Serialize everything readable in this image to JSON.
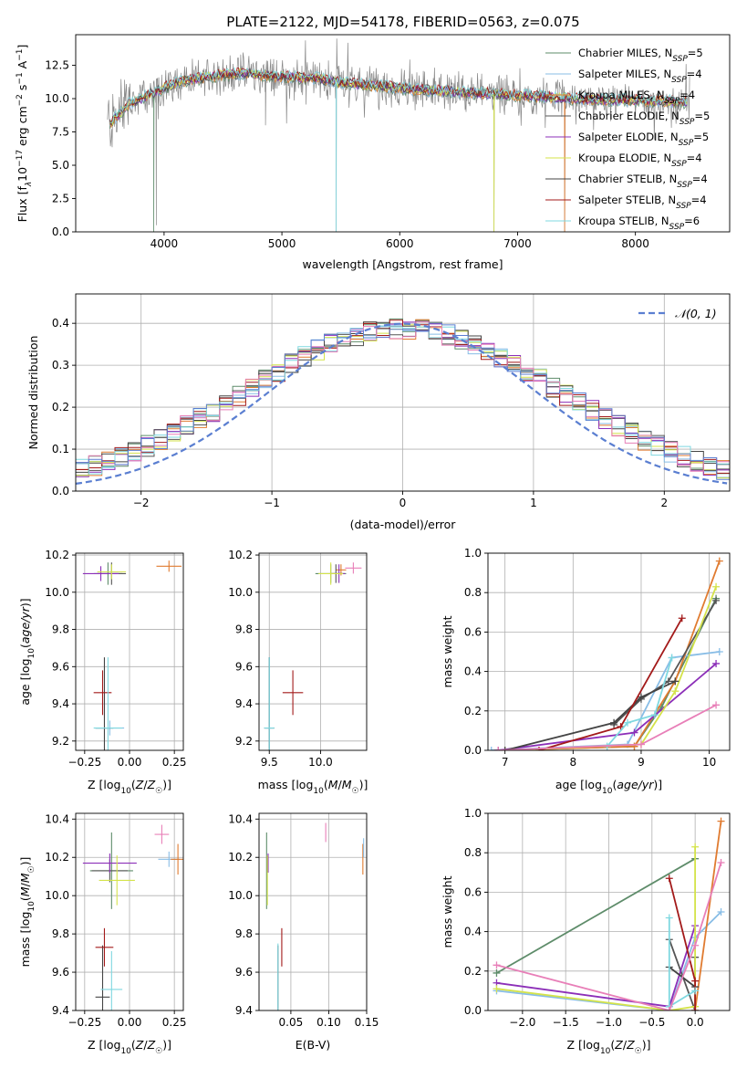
{
  "figure": {
    "title": "PLATE=2122, MJD=54178, FIBERID=0563, z=0.075"
  },
  "models": [
    {
      "label": "Chabrier MILES, N",
      "sub": "SSP",
      "suffix": "=5",
      "color": "#5e8c6a"
    },
    {
      "label": "Salpeter MILES, N",
      "sub": "SSP",
      "suffix": "=4",
      "color": "#88bde6"
    },
    {
      "label": "Kroupa MILES, N",
      "sub": "SSP",
      "suffix": "=4",
      "color": "#e07b30"
    },
    {
      "label": "Chabrier ELODIE, N",
      "sub": "SSP",
      "suffix": "=5",
      "color": "#555555"
    },
    {
      "label": "Salpeter ELODIE, N",
      "sub": "SSP",
      "suffix": "=5",
      "color": "#8c2fb8"
    },
    {
      "label": "Kroupa ELODIE, N",
      "sub": "SSP",
      "suffix": "=4",
      "color": "#d4e34a"
    },
    {
      "label": "Chabrier STELIB, N",
      "sub": "SSP",
      "suffix": "=4",
      "color": "#444444"
    },
    {
      "label": "Salpeter STELIB, N",
      "sub": "SSP",
      "suffix": "=4",
      "color": "#a31a1a"
    },
    {
      "label": "Kroupa STELIB, N",
      "sub": "SSP",
      "suffix": "=6",
      "color": "#7fd8e0"
    }
  ],
  "chart_data": [
    {
      "id": "spectrum",
      "type": "line",
      "xlabel": "wavelength [Angstrom, rest frame]",
      "ylabel": "Flux [f",
      "ylabel_parts": [
        "Flux [f",
        "λ",
        "10",
        "−17",
        " erg cm",
        "−2",
        " s",
        "−1",
        " A",
        "−1",
        "]"
      ],
      "xlim": [
        3250,
        8800
      ],
      "ylim": [
        0,
        14.8
      ],
      "xticks": [
        4000,
        5000,
        6000,
        7000,
        8000
      ],
      "yticks": [
        0.0,
        2.5,
        5.0,
        7.5,
        10.0,
        12.5
      ],
      "ytick_labels": [
        "0.0",
        "2.5",
        "5.0",
        "7.5",
        "10.0",
        "12.5"
      ],
      "data_color": "#888888",
      "continuum_x": [
        3550,
        3700,
        3850,
        4000,
        4100,
        4200,
        4300,
        4500,
        4700,
        4900,
        5100,
        5300,
        5500,
        5700,
        5900,
        6100,
        6300,
        6500,
        6700,
        6900,
        7100,
        7300,
        7500,
        7700,
        7900,
        8100,
        8300,
        8450
      ],
      "continuum_y": [
        8.2,
        9.6,
        10.2,
        10.8,
        11.2,
        11.4,
        11.5,
        11.8,
        11.9,
        11.7,
        11.6,
        11.5,
        11.2,
        11.0,
        10.9,
        10.7,
        10.6,
        10.5,
        10.4,
        10.3,
        10.2,
        10.1,
        10.0,
        9.9,
        9.9,
        9.8,
        9.8,
        9.7
      ],
      "absorption_dips": [
        [
          3934,
          0.5
        ],
        [
          4861,
          8.0
        ],
        [
          5460,
          0.0
        ],
        [
          6800,
          0.0
        ],
        [
          7400,
          0.0
        ],
        [
          6563,
          9.0
        ]
      ]
    },
    {
      "id": "residuals",
      "type": "histogram",
      "xlabel": "(data-model)/error",
      "ylabel": "Normed distribution",
      "xlim": [
        -2.5,
        2.5
      ],
      "ylim": [
        0,
        0.47
      ],
      "xticks": [
        -2,
        -1,
        0,
        1,
        2
      ],
      "xtick_labels": [
        "−2",
        "−1",
        "0",
        "1",
        "2"
      ],
      "yticks": [
        0.0,
        0.1,
        0.2,
        0.3,
        0.4
      ],
      "ytick_labels": [
        "0.0",
        "0.1",
        "0.2",
        "0.3",
        "0.4"
      ],
      "legend": "𝒩(0, 1)",
      "gauss_color": "#5b7fd1",
      "bin_width": 0.1
    },
    {
      "id": "age-vs-z",
      "type": "scatter",
      "xlabel": "Z [log10(Z/Z☉)]",
      "ylabel": "age [log10(age/yr)]",
      "xlim": [
        -0.3,
        0.3
      ],
      "ylim": [
        9.15,
        10.21
      ],
      "xticks": [
        -0.25,
        0.0,
        0.25
      ],
      "xtick_labels": [
        "−0.25",
        "0.00",
        "0.25"
      ],
      "yticks": [
        9.2,
        9.4,
        9.6,
        9.8,
        10.0,
        10.2
      ],
      "ytick_labels": [
        "9.2",
        "9.4",
        "9.6",
        "9.8",
        "10.0",
        "10.2"
      ],
      "points": [
        {
          "m": 0,
          "x": -0.12,
          "y": 10.1,
          "ex": 0.08,
          "ey": 0.06
        },
        {
          "m": 1,
          "x": -0.11,
          "y": 9.27,
          "ex": 0.08,
          "ey": 0.04
        },
        {
          "m": 2,
          "x": 0.22,
          "y": 10.14,
          "ex": 0.07,
          "ey": 0.03
        },
        {
          "m": 3,
          "x": -0.1,
          "y": 10.1,
          "ex": 0.08,
          "ey": 0.06
        },
        {
          "m": 4,
          "x": -0.16,
          "y": 10.1,
          "ex": 0.1,
          "ey": 0.04
        },
        {
          "m": 5,
          "x": -0.1,
          "y": 10.11,
          "ex": 0.08,
          "ey": 0.04
        },
        {
          "m": 6,
          "x": -0.14,
          "y": 9.27,
          "ex": 0.05,
          "ey": 0.38
        },
        {
          "m": 7,
          "x": -0.15,
          "y": 9.46,
          "ex": 0.05,
          "ey": 0.12
        },
        {
          "m": 8,
          "x": -0.12,
          "y": 9.27,
          "ex": 0.08,
          "ey": 0.38
        }
      ]
    },
    {
      "id": "age-vs-mass",
      "type": "scatter",
      "xlabel": "mass [log10(M/M☉)]",
      "ylabel": "",
      "xlim": [
        9.4,
        10.45
      ],
      "ylim": [
        9.15,
        10.21
      ],
      "xticks": [
        9.5,
        10.0
      ],
      "xtick_labels": [
        "9.5",
        "10.0"
      ],
      "yticks": [
        9.2,
        9.4,
        9.6,
        9.8,
        10.0,
        10.2
      ],
      "ytick_labels": [
        "9.2",
        "9.4",
        "9.6",
        "9.8",
        "10.0",
        "10.2"
      ],
      "points": [
        {
          "m": 0,
          "x": 10.1,
          "y": 10.1,
          "ex": 0.15,
          "ey": 0.05
        },
        {
          "m": 1,
          "x": 9.5,
          "y": 9.27,
          "ex": 0.04,
          "ey": 0.38
        },
        {
          "m": 2,
          "x": 10.2,
          "y": 10.12,
          "ex": 0.05,
          "ey": 0.03
        },
        {
          "m": 3,
          "x": 10.15,
          "y": 10.1,
          "ex": 0.06,
          "ey": 0.05
        },
        {
          "m": 4,
          "x": 10.18,
          "y": 10.1,
          "ex": 0.06,
          "ey": 0.05
        },
        {
          "m": 5,
          "x": 10.1,
          "y": 10.1,
          "ex": 0.12,
          "ey": 0.06
        },
        {
          "m": 6,
          "x": 9.5,
          "y": 9.27,
          "ex": 0.05,
          "ey": 0.38
        },
        {
          "m": 7,
          "x": 9.73,
          "y": 9.46,
          "ex": 0.1,
          "ey": 0.12
        },
        {
          "m": 8,
          "x": 9.5,
          "y": 9.27,
          "ex": 0.05,
          "ey": 0.38
        },
        {
          "m": 9,
          "x": 10.32,
          "y": 10.13,
          "ex": 0.08,
          "ey": 0.03
        }
      ]
    },
    {
      "id": "mass-weight-vs-age",
      "type": "line",
      "xlabel": "age [log10(age/yr)]",
      "ylabel": "mass weight",
      "xlim": [
        6.75,
        10.3
      ],
      "ylim": [
        0,
        1.0
      ],
      "xticks": [
        7,
        8,
        9,
        10
      ],
      "xtick_labels": [
        "7",
        "8",
        "9",
        "10"
      ],
      "yticks": [
        0.0,
        0.2,
        0.4,
        0.6,
        0.8,
        1.0
      ],
      "ytick_labels": [
        "0.0",
        "0.2",
        "0.4",
        "0.6",
        "0.8",
        "1.0"
      ],
      "series": [
        {
          "m": 0,
          "x": [
            6.9,
            8.9,
            9.3,
            10.1
          ],
          "y": [
            0.0,
            0.02,
            0.22,
            0.77
          ]
        },
        {
          "m": 1,
          "x": [
            6.8,
            8.8,
            9.45,
            10.15
          ],
          "y": [
            0.0,
            0.03,
            0.47,
            0.5
          ]
        },
        {
          "m": 2,
          "x": [
            6.9,
            8.9,
            9.5,
            10.15
          ],
          "y": [
            0.0,
            0.02,
            0.35,
            0.96
          ]
        },
        {
          "m": 3,
          "x": [
            8.6,
            9.0,
            9.4,
            10.1
          ],
          "y": [
            0.13,
            0.26,
            0.35,
            0.76
          ]
        },
        {
          "m": 4,
          "x": [
            6.9,
            8.9,
            10.1
          ],
          "y": [
            0.0,
            0.09,
            0.44
          ]
        },
        {
          "m": 5,
          "x": [
            7.0,
            9.0,
            9.5,
            10.1
          ],
          "y": [
            0.0,
            0.03,
            0.3,
            0.83
          ]
        },
        {
          "m": 6,
          "x": [
            7.0,
            8.6,
            9.0,
            9.5
          ],
          "y": [
            0.0,
            0.14,
            0.27,
            0.35
          ]
        },
        {
          "m": 7,
          "x": [
            7.5,
            8.7,
            9.6
          ],
          "y": [
            0.0,
            0.12,
            0.67
          ]
        },
        {
          "m": 8,
          "x": [
            8.5,
            8.8,
            9.2,
            9.45
          ],
          "y": [
            0.02,
            0.14,
            0.18,
            0.47
          ]
        },
        {
          "m": 9,
          "x": [
            6.9,
            9.0,
            10.1
          ],
          "y": [
            0.0,
            0.03,
            0.23
          ]
        }
      ]
    },
    {
      "id": "mass-vs-z",
      "type": "scatter",
      "xlabel": "Z [log10(Z/Z☉)]",
      "ylabel": "mass [log10(M/M☉)]",
      "xlim": [
        -0.3,
        0.3
      ],
      "ylim": [
        9.4,
        10.43
      ],
      "xticks": [
        -0.25,
        0.0,
        0.25
      ],
      "xtick_labels": [
        "−0.25",
        "0.00",
        "0.25"
      ],
      "yticks": [
        9.4,
        9.6,
        9.8,
        10.0,
        10.2,
        10.4
      ],
      "ytick_labels": [
        "9.4",
        "9.6",
        "9.8",
        "10.0",
        "10.2",
        "10.4"
      ],
      "points": [
        {
          "m": 0,
          "x": -0.1,
          "y": 10.13,
          "ex": 0.12,
          "ey": 0.2
        },
        {
          "m": 1,
          "x": 0.22,
          "y": 10.19,
          "ex": 0.06,
          "ey": 0.04
        },
        {
          "m": 2,
          "x": 0.27,
          "y": 10.19,
          "ex": 0.04,
          "ey": 0.08
        },
        {
          "m": 3,
          "x": -0.11,
          "y": 10.13,
          "ex": 0.1,
          "ey": 0.06
        },
        {
          "m": 4,
          "x": -0.11,
          "y": 10.17,
          "ex": 0.15,
          "ey": 0.05
        },
        {
          "m": 5,
          "x": -0.07,
          "y": 10.08,
          "ex": 0.1,
          "ey": 0.13
        },
        {
          "m": 6,
          "x": -0.15,
          "y": 9.47,
          "ex": 0.04,
          "ey": 0.27
        },
        {
          "m": 7,
          "x": -0.14,
          "y": 9.73,
          "ex": 0.05,
          "ey": 0.1
        },
        {
          "m": 8,
          "x": -0.1,
          "y": 9.51,
          "ex": 0.06,
          "ey": 0.2
        },
        {
          "m": 9,
          "x": 0.18,
          "y": 10.32,
          "ex": 0.04,
          "ey": 0.05
        }
      ]
    },
    {
      "id": "mass-vs-ebv",
      "type": "scatter",
      "xlabel": "E(B-V)",
      "ylabel": "",
      "xlim": [
        0.008,
        0.15
      ],
      "ylim": [
        9.4,
        10.43
      ],
      "xticks": [
        0.05,
        0.1,
        0.15
      ],
      "xtick_labels": [
        "0.05",
        "0.10",
        "0.15"
      ],
      "yticks": [
        9.4,
        9.6,
        9.8,
        10.0,
        10.2,
        10.4
      ],
      "ytick_labels": [
        "9.4",
        "9.6",
        "9.8",
        "10.0",
        "10.2",
        "10.4"
      ],
      "points": [
        {
          "m": 0,
          "x": 0.018,
          "y": 10.13,
          "ex": 0.0,
          "ey": 0.2
        },
        {
          "m": 2,
          "x": 0.145,
          "y": 10.19,
          "ex": 0.0,
          "ey": 0.08
        },
        {
          "m": 4,
          "x": 0.02,
          "y": 10.17,
          "ex": 0.0,
          "ey": 0.05
        },
        {
          "m": 5,
          "x": 0.019,
          "y": 10.08,
          "ex": 0.0,
          "ey": 0.13
        },
        {
          "m": 6,
          "x": 0.033,
          "y": 9.47,
          "ex": 0.0,
          "ey": 0.27
        },
        {
          "m": 7,
          "x": 0.038,
          "y": 9.73,
          "ex": 0.0,
          "ey": 0.1
        },
        {
          "m": 8,
          "x": 0.033,
          "y": 9.55,
          "ex": 0.0,
          "ey": 0.2
        },
        {
          "m": 9,
          "x": 0.096,
          "y": 10.33,
          "ex": 0.0,
          "ey": 0.05
        },
        {
          "m": 1,
          "x": 0.146,
          "y": 10.25,
          "ex": 0.0,
          "ey": 0.05
        }
      ]
    },
    {
      "id": "mass-weight-vs-z",
      "type": "line",
      "xlabel": "Z [log10(Z/Z☉)]",
      "ylabel": "mass weight",
      "xlim": [
        -2.4,
        0.4
      ],
      "ylim": [
        0,
        1.0
      ],
      "xticks": [
        -2.0,
        -1.5,
        -1.0,
        -0.5,
        0.0
      ],
      "xtick_labels": [
        "−2.0",
        "−1.5",
        "−1.0",
        "−0.5",
        "0.0"
      ],
      "yticks": [
        0.0,
        0.2,
        0.4,
        0.6,
        0.8,
        1.0
      ],
      "ytick_labels": [
        "0.0",
        "0.2",
        "0.4",
        "0.6",
        "0.8",
        "1.0"
      ],
      "series": [
        {
          "m": 0,
          "x": [
            -2.3,
            0.0
          ],
          "y": [
            0.19,
            0.77
          ]
        },
        {
          "m": 1,
          "x": [
            -2.3,
            -0.3,
            0.0,
            0.3
          ],
          "y": [
            0.1,
            0.0,
            0.37,
            0.5
          ]
        },
        {
          "m": 2,
          "x": [
            0.0,
            0.3
          ],
          "y": [
            0.0,
            0.96
          ]
        },
        {
          "m": 3,
          "x": [
            -0.3,
            0.0,
            0.0
          ],
          "y": [
            0.36,
            0.0,
            0.27
          ]
        },
        {
          "m": 4,
          "x": [
            -2.3,
            -0.3,
            0.0
          ],
          "y": [
            0.14,
            0.02,
            0.43
          ]
        },
        {
          "m": 5,
          "x": [
            -2.3,
            -0.3,
            0.0,
            0.0
          ],
          "y": [
            0.11,
            0.0,
            0.02,
            0.83
          ]
        },
        {
          "m": 6,
          "x": [
            -0.3,
            0.0
          ],
          "y": [
            0.22,
            0.12
          ]
        },
        {
          "m": 7,
          "x": [
            -0.3,
            0.0,
            0.0
          ],
          "y": [
            0.67,
            0.15,
            0.0
          ]
        },
        {
          "m": 8,
          "x": [
            -0.3,
            -0.3,
            0.0
          ],
          "y": [
            0.47,
            0.02,
            0.1
          ]
        },
        {
          "m": 9,
          "x": [
            -2.3,
            -0.3,
            0.0,
            0.3
          ],
          "y": [
            0.23,
            0.0,
            0.33,
            0.75
          ]
        }
      ]
    }
  ],
  "extra_colors": {
    "pink": "#e87fb8",
    "blue": "#5b7fd1"
  }
}
